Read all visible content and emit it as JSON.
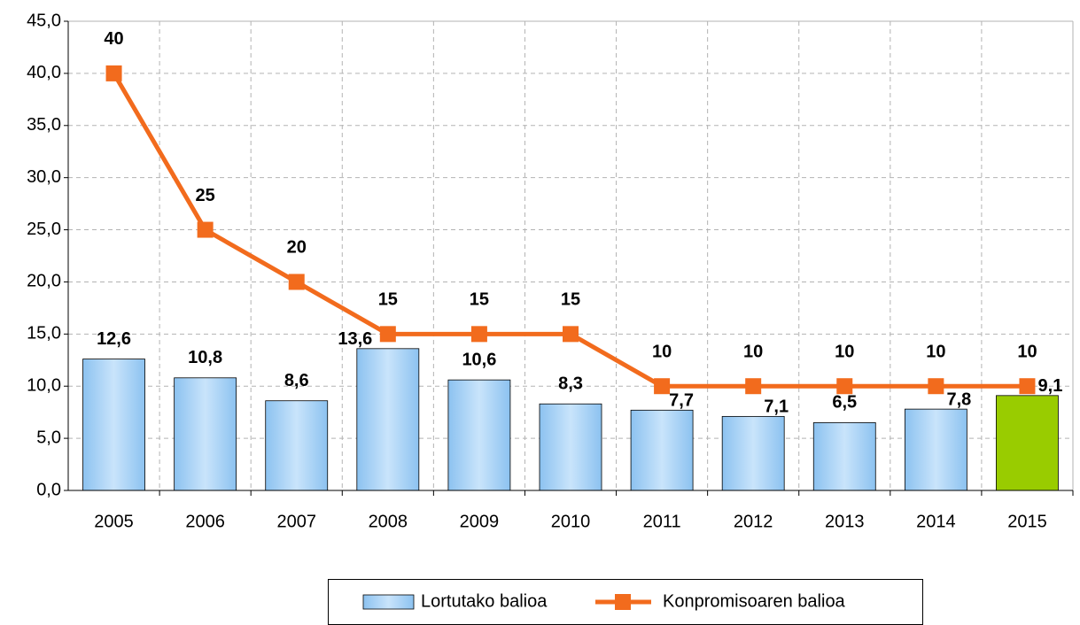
{
  "chart_data": {
    "type": "bar-line",
    "categories": [
      "2005",
      "2006",
      "2007",
      "2008",
      "2009",
      "2010",
      "2011",
      "2012",
      "2013",
      "2014",
      "2015"
    ],
    "series": [
      {
        "name": "Lortutako balioa",
        "type": "bar",
        "color": "#a9d3f7",
        "colors": [
          "#a9d3f7",
          "#a9d3f7",
          "#a9d3f7",
          "#a9d3f7",
          "#a9d3f7",
          "#a9d3f7",
          "#a9d3f7",
          "#a9d3f7",
          "#a9d3f7",
          "#a9d3f7",
          "#99cc00"
        ],
        "values": [
          12.6,
          10.8,
          8.6,
          13.6,
          10.6,
          8.3,
          7.7,
          7.1,
          6.5,
          7.8,
          9.1
        ],
        "value_labels": [
          "12,6",
          "10,8",
          "8,6",
          "13,6",
          "10,6",
          "8,3",
          "7,7",
          "7,1",
          "6,5",
          "7,8",
          "9,1"
        ],
        "label_color": "#333399"
      },
      {
        "name": "Konpromisoaren balioa",
        "type": "line",
        "color": "#f26b1d",
        "values": [
          40,
          25,
          20,
          15,
          15,
          15,
          10,
          10,
          10,
          10,
          10
        ]
      }
    ],
    "ylim": [
      0,
      45
    ],
    "yticks": [
      {
        "value": 0,
        "label": "0,0"
      },
      {
        "value": 5,
        "label": "5,0"
      },
      {
        "value": 10,
        "label": "10,0"
      },
      {
        "value": 15,
        "label": "15,0"
      },
      {
        "value": 20,
        "label": "20,0"
      },
      {
        "value": 25,
        "label": "25,0"
      },
      {
        "value": 30,
        "label": "30,0"
      },
      {
        "value": 35,
        "label": "35,0"
      },
      {
        "value": 40,
        "label": "40,0"
      },
      {
        "value": 45,
        "label": "45,0"
      }
    ],
    "grid": true,
    "legend": "bottom"
  }
}
